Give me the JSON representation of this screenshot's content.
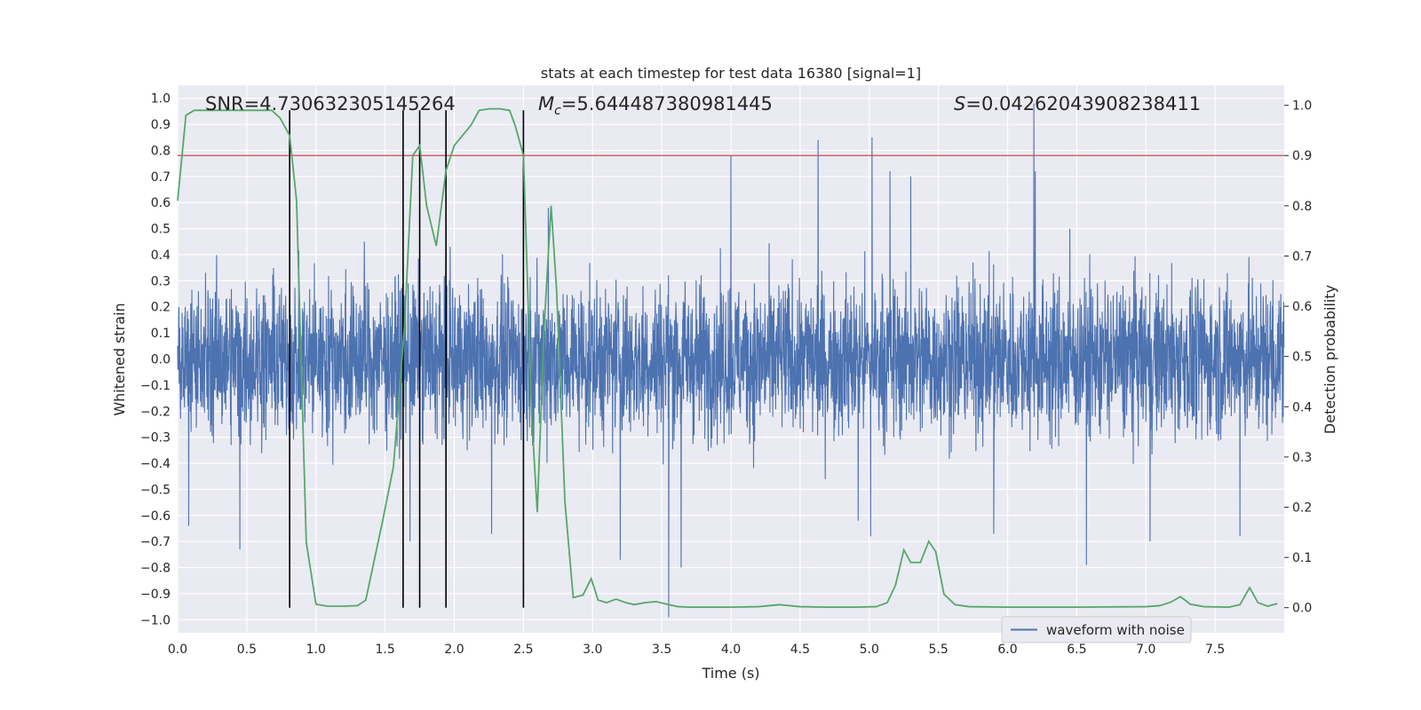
{
  "chart_data": {
    "type": "line",
    "title": "stats at each timestep for test data 16380 [signal=1]",
    "xlabel": "Time (s)",
    "ylabel_left": "Whitened strain",
    "ylabel_right": "Detection probability",
    "xlim": [
      0.0,
      8.0
    ],
    "ylim_left": [
      -1.05,
      1.05
    ],
    "ylim_right": [
      -0.05,
      1.04
    ],
    "x_ticks": [
      "0.0",
      "0.5",
      "1.0",
      "1.5",
      "2.0",
      "2.5",
      "3.0",
      "3.5",
      "4.0",
      "4.5",
      "5.0",
      "5.5",
      "6.0",
      "6.5",
      "7.0",
      "7.5"
    ],
    "y_left_ticks": [
      "1.0",
      "0.9",
      "0.8",
      "0.7",
      "0.6",
      "0.5",
      "0.4",
      "0.3",
      "0.2",
      "0.1",
      "0.0",
      "−0.1",
      "−0.2",
      "−0.3",
      "−0.4",
      "−0.5",
      "−0.6",
      "−0.7",
      "−0.8",
      "−0.9",
      "−1.0"
    ],
    "y_right_ticks": [
      "1.0",
      "0.9",
      "0.8",
      "0.7",
      "0.6",
      "0.5",
      "0.4",
      "0.3",
      "0.2",
      "0.1",
      "0.0"
    ],
    "grid": true,
    "legend": {
      "placement": "bottom-right",
      "entries": [
        "waveform with noise"
      ]
    },
    "annotations": {
      "snr": "SNR=4.730632305145264",
      "mc_symbol": "M",
      "mc_sub": "c",
      "mc_value": "=5.644487380981445",
      "s_symbol": "S",
      "s_value": "=0.04262043908238411"
    },
    "threshold": {
      "value": 0.9,
      "color": "#c44e52"
    },
    "vertical_lines": [
      0.81,
      1.63,
      1.75,
      1.94,
      2.5
    ],
    "waveform": {
      "name": "waveform with noise",
      "color": "#4c72b0",
      "duration": 8.0,
      "envelope_typical": 0.3,
      "spikes": [
        {
          "t": 0.45,
          "v": -0.73
        },
        {
          "t": 0.08,
          "v": -0.64
        },
        {
          "t": 1.35,
          "v": 0.45
        },
        {
          "t": 1.68,
          "v": -0.7
        },
        {
          "t": 1.97,
          "v": 0.43
        },
        {
          "t": 2.27,
          "v": -0.67
        },
        {
          "t": 2.68,
          "v": 0.58
        },
        {
          "t": 3.55,
          "v": -0.99
        },
        {
          "t": 3.64,
          "v": -0.8
        },
        {
          "t": 4.0,
          "v": 0.78
        },
        {
          "t": 4.63,
          "v": 0.84
        },
        {
          "t": 5.02,
          "v": 0.85
        },
        {
          "t": 5.01,
          "v": -0.68
        },
        {
          "t": 5.15,
          "v": 0.72
        },
        {
          "t": 5.3,
          "v": 0.7
        },
        {
          "t": 6.19,
          "v": 0.98
        },
        {
          "t": 6.2,
          "v": 0.72
        },
        {
          "t": 6.57,
          "v": -0.79
        },
        {
          "t": 7.03,
          "v": -0.7
        },
        {
          "t": 7.68,
          "v": -0.68
        },
        {
          "t": 5.9,
          "v": -0.67
        },
        {
          "t": 6.45,
          "v": 0.5
        },
        {
          "t": 3.2,
          "v": -0.77
        },
        {
          "t": 4.92,
          "v": -0.62
        }
      ]
    },
    "probability": {
      "color": "#55a868",
      "x": [
        0.0,
        0.06,
        0.12,
        0.2,
        0.3,
        0.4,
        0.5,
        0.6,
        0.68,
        0.74,
        0.81,
        0.86,
        0.93,
        1.0,
        1.08,
        1.2,
        1.3,
        1.36,
        1.48,
        1.56,
        1.64,
        1.7,
        1.75,
        1.8,
        1.87,
        1.94,
        2.0,
        2.06,
        2.12,
        2.18,
        2.25,
        2.33,
        2.4,
        2.44,
        2.5,
        2.56,
        2.6,
        2.65,
        2.7,
        2.74,
        2.8,
        2.86,
        2.93,
        2.99,
        3.04,
        3.1,
        3.17,
        3.24,
        3.3,
        3.38,
        3.46,
        3.55,
        3.62,
        3.7,
        3.8,
        4.0,
        4.2,
        4.35,
        4.5,
        4.7,
        4.9,
        5.05,
        5.13,
        5.19,
        5.25,
        5.3,
        5.37,
        5.43,
        5.48,
        5.54,
        5.62,
        5.72,
        6.0,
        6.5,
        7.0,
        7.1,
        7.18,
        7.25,
        7.32,
        7.42,
        7.6,
        7.68,
        7.75,
        7.81,
        7.88,
        7.95
      ],
      "values": [
        0.81,
        0.98,
        0.99,
        0.99,
        0.99,
        0.99,
        0.99,
        0.99,
        0.99,
        0.975,
        0.94,
        0.81,
        0.13,
        0.007,
        0.003,
        0.003,
        0.004,
        0.015,
        0.17,
        0.28,
        0.56,
        0.9,
        0.92,
        0.8,
        0.72,
        0.87,
        0.92,
        0.94,
        0.96,
        0.99,
        0.993,
        0.993,
        0.99,
        0.96,
        0.9,
        0.38,
        0.19,
        0.56,
        0.8,
        0.63,
        0.21,
        0.02,
        0.025,
        0.058,
        0.015,
        0.01,
        0.017,
        0.01,
        0.006,
        0.01,
        0.012,
        0.006,
        0.002,
        0.001,
        0.001,
        0.001,
        0.002,
        0.006,
        0.002,
        0.001,
        0.001,
        0.002,
        0.01,
        0.045,
        0.115,
        0.09,
        0.09,
        0.132,
        0.112,
        0.027,
        0.006,
        0.002,
        0.001,
        0.001,
        0.002,
        0.004,
        0.011,
        0.022,
        0.007,
        0.002,
        0.001,
        0.006,
        0.04,
        0.01,
        0.003,
        0.008
      ]
    }
  }
}
